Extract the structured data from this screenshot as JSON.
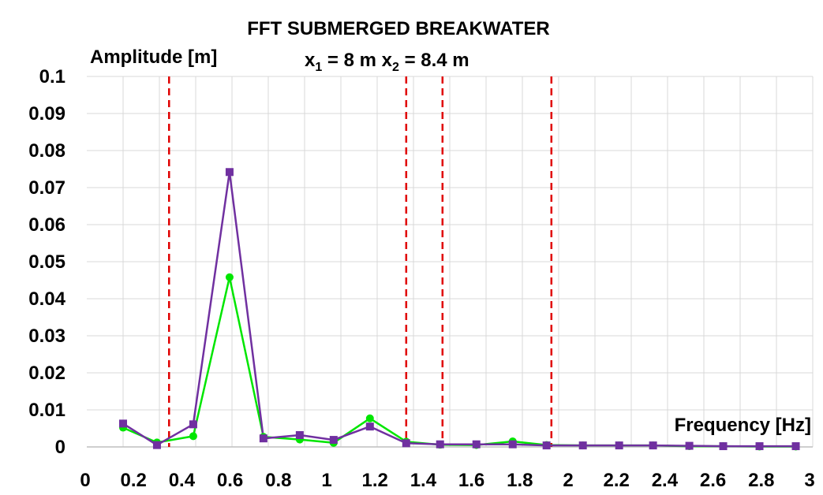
{
  "chart_data": {
    "type": "line",
    "title": "FFT SUBMERGED BREAKWATER",
    "subtitle": {
      "x1_label": "x",
      "x1_sub": "1",
      "x1_value": " = 8 m ",
      "x2_label": "x",
      "x2_sub": "2",
      "x2_value": " = 8.4 m"
    },
    "xlabel": "Frequency [Hz]",
    "ylabel": "Amplitude [m]",
    "xlim": [
      0,
      3
    ],
    "ylim": [
      0,
      0.1
    ],
    "x_ticks": [
      0,
      0.2,
      0.4,
      0.6,
      0.8,
      1,
      1.2,
      1.4,
      1.6,
      1.8,
      2,
      2.2,
      2.4,
      2.6,
      2.8,
      3
    ],
    "x_tick_labels": [
      "0",
      "0.2",
      "0.4",
      "0.6",
      "0.8",
      "1",
      "1.2",
      "1.4",
      "1.6",
      "1.8",
      "2",
      "2.2",
      "2.4",
      "2.6",
      "2.8",
      "3"
    ],
    "y_ticks": [
      0,
      0.01,
      0.02,
      0.03,
      0.04,
      0.05,
      0.06,
      0.07,
      0.08,
      0.09,
      0.1
    ],
    "y_tick_labels": [
      "0",
      "0.01",
      "0.02",
      "0.03",
      "0.04",
      "0.05",
      "0.06",
      "0.07",
      "0.08",
      "0.09",
      "0.1"
    ],
    "grid": true,
    "reference_lines_x": [
      0.34,
      1.32,
      1.47,
      1.92
    ],
    "reference_line_color": "#e00000",
    "series": [
      {
        "color": "#00e600",
        "marker": "circle",
        "x": [
          0.15,
          0.29,
          0.44,
          0.59,
          0.73,
          0.88,
          1.02,
          1.17,
          1.32,
          1.46,
          1.61,
          1.76,
          1.9,
          2.05,
          2.2,
          2.34,
          2.49,
          2.63,
          2.78,
          2.93
        ],
        "values": [
          0.0052,
          0.0012,
          0.0029,
          0.0458,
          0.0027,
          0.002,
          0.0011,
          0.0077,
          0.0014,
          0.0006,
          0.0005,
          0.0015,
          0.0005,
          0.0004,
          0.0004,
          0.0004,
          0.0002,
          0.0002,
          0.0001,
          0.0001
        ]
      },
      {
        "color": "#7030a0",
        "marker": "square",
        "x": [
          0.15,
          0.29,
          0.44,
          0.59,
          0.73,
          0.88,
          1.02,
          1.17,
          1.32,
          1.46,
          1.61,
          1.76,
          1.9,
          2.05,
          2.2,
          2.34,
          2.49,
          2.63,
          2.78,
          2.93
        ],
        "values": [
          0.0063,
          0.0005,
          0.0061,
          0.0742,
          0.0023,
          0.0032,
          0.0019,
          0.0055,
          0.001,
          0.0007,
          0.0007,
          0.0007,
          0.0004,
          0.0004,
          0.0004,
          0.0004,
          0.0003,
          0.0002,
          0.0002,
          0.0002
        ]
      }
    ]
  }
}
